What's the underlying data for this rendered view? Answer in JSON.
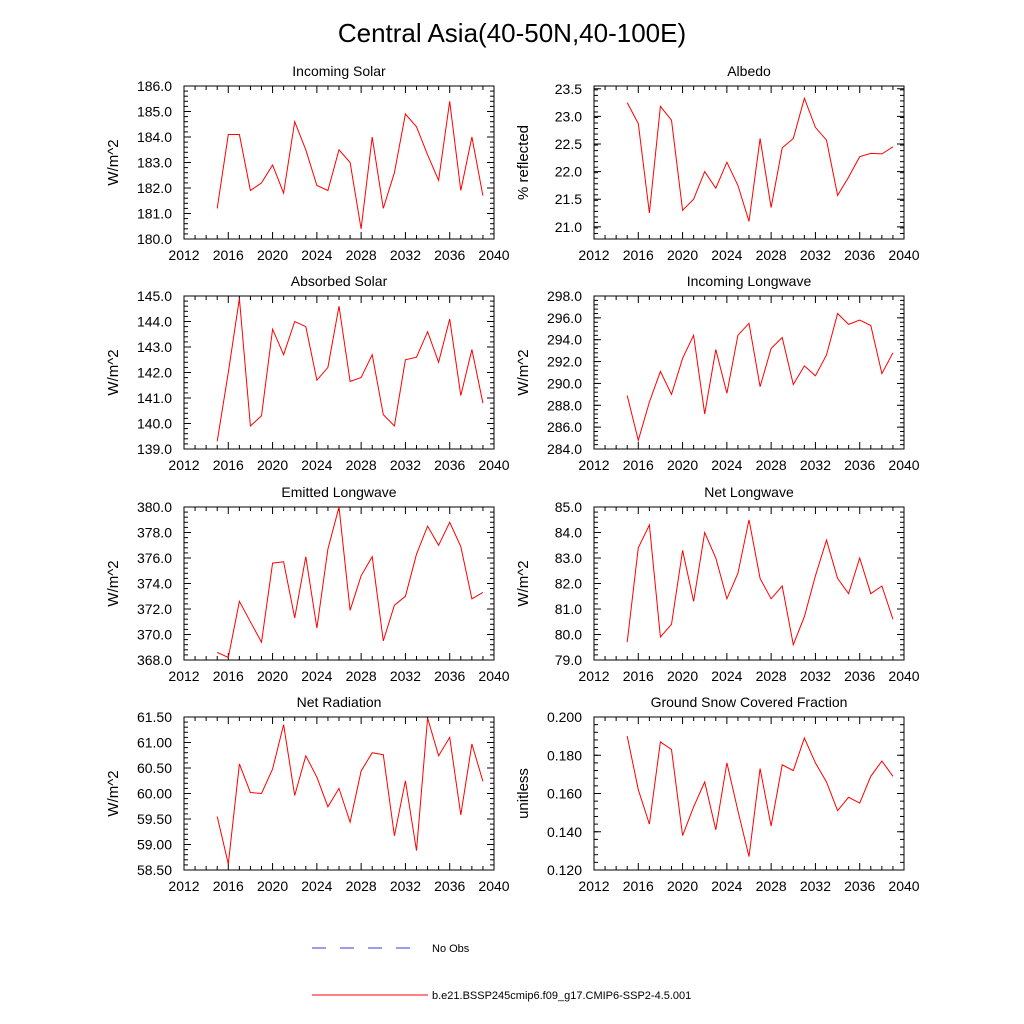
{
  "figure_title": "Central Asia(40-50N,40-100E)",
  "legend": [
    {
      "label": "No Obs",
      "color": "#3a3ad8",
      "dash": true
    },
    {
      "label": "b.e21.BSSP245cmip6.f09_g17.CMIP6-SSP2-4.5.001",
      "color": "#ff0000",
      "dash": false
    }
  ],
  "chart_data": [
    {
      "type": "line",
      "title": "Incoming Solar",
      "ylabel": "W/m^2",
      "xlim": [
        2012,
        2040
      ],
      "ylim": [
        180.0,
        186.0
      ],
      "xticks": [
        2012,
        2016,
        2020,
        2024,
        2028,
        2032,
        2036,
        2040
      ],
      "yticks": [
        "180.0",
        "181.0",
        "182.0",
        "183.0",
        "184.0",
        "185.0",
        "186.0"
      ],
      "series": [
        {
          "color": "#ff0000",
          "x": [
            2015,
            2016,
            2017,
            2018,
            2019,
            2020,
            2021,
            2022,
            2023,
            2024,
            2025,
            2026,
            2027,
            2028,
            2029,
            2030,
            2031,
            2032,
            2033,
            2034,
            2035,
            2036,
            2037,
            2038,
            2039
          ],
          "y": [
            181.2,
            184.1,
            184.1,
            181.9,
            182.2,
            182.9,
            181.8,
            184.6,
            183.5,
            182.1,
            181.9,
            183.5,
            183.0,
            180.4,
            184.0,
            181.2,
            182.6,
            184.9,
            184.4,
            183.3,
            182.3,
            185.4,
            181.9,
            184.0,
            181.7
          ]
        }
      ]
    },
    {
      "type": "line",
      "title": "Albedo",
      "ylabel": "% reflected",
      "xlim": [
        2012,
        2040
      ],
      "ylim": [
        20.78,
        23.55
      ],
      "xticks": [
        2012,
        2016,
        2020,
        2024,
        2028,
        2032,
        2036,
        2040
      ],
      "yticks": [
        "21.0",
        "21.5",
        "22.0",
        "22.5",
        "23.0",
        "23.5"
      ],
      "series": [
        {
          "color": "#ff0000",
          "x": [
            2015,
            2016,
            2017,
            2018,
            2019,
            2020,
            2021,
            2022,
            2023,
            2024,
            2025,
            2026,
            2027,
            2028,
            2029,
            2030,
            2031,
            2032,
            2033,
            2034,
            2035,
            2036,
            2037,
            2038,
            2039
          ],
          "y": [
            23.25,
            22.87,
            21.25,
            23.18,
            22.93,
            21.3,
            21.5,
            22.0,
            21.7,
            22.17,
            21.75,
            21.1,
            22.6,
            21.35,
            22.43,
            22.6,
            23.33,
            22.8,
            22.57,
            21.57,
            21.9,
            22.27,
            22.33,
            22.32,
            22.45
          ]
        }
      ]
    },
    {
      "type": "line",
      "title": "Absorbed Solar",
      "ylabel": "W/m^2",
      "xlim": [
        2012,
        2040
      ],
      "ylim": [
        139.0,
        145.0
      ],
      "xticks": [
        2012,
        2016,
        2020,
        2024,
        2028,
        2032,
        2036,
        2040
      ],
      "yticks": [
        "139.0",
        "140.0",
        "141.0",
        "142.0",
        "143.0",
        "144.0",
        "145.0"
      ],
      "series": [
        {
          "color": "#ff0000",
          "x": [
            2015,
            2016,
            2017,
            2018,
            2019,
            2020,
            2021,
            2022,
            2023,
            2024,
            2025,
            2026,
            2027,
            2028,
            2029,
            2030,
            2031,
            2032,
            2033,
            2034,
            2035,
            2036,
            2037,
            2038,
            2039
          ],
          "y": [
            139.3,
            142.0,
            144.9,
            139.9,
            140.3,
            143.7,
            142.7,
            144.0,
            143.8,
            141.7,
            142.2,
            144.6,
            141.65,
            141.8,
            142.7,
            140.35,
            139.9,
            142.5,
            142.6,
            143.6,
            142.4,
            144.1,
            141.1,
            142.9,
            140.8
          ]
        }
      ]
    },
    {
      "type": "line",
      "title": "Incoming Longwave",
      "ylabel": "W/m^2",
      "xlim": [
        2012,
        2040
      ],
      "ylim": [
        284.0,
        298.0
      ],
      "xticks": [
        2012,
        2016,
        2020,
        2024,
        2028,
        2032,
        2036,
        2040
      ],
      "yticks": [
        "284.0",
        "286.0",
        "288.0",
        "290.0",
        "292.0",
        "294.0",
        "296.0",
        "298.0"
      ],
      "series": [
        {
          "color": "#ff0000",
          "x": [
            2015,
            2016,
            2017,
            2018,
            2019,
            2020,
            2021,
            2022,
            2023,
            2024,
            2025,
            2026,
            2027,
            2028,
            2029,
            2030,
            2031,
            2032,
            2033,
            2034,
            2035,
            2036,
            2037,
            2038,
            2039
          ],
          "y": [
            288.9,
            284.8,
            288.3,
            291.1,
            289.0,
            292.3,
            294.4,
            287.2,
            293.1,
            289.1,
            294.4,
            295.5,
            289.7,
            293.2,
            294.2,
            289.9,
            291.6,
            290.7,
            292.6,
            296.4,
            295.4,
            295.8,
            295.3,
            290.9,
            292.8
          ]
        }
      ]
    },
    {
      "type": "line",
      "title": "Emitted Longwave",
      "ylabel": "W/m^2",
      "xlim": [
        2012,
        2040
      ],
      "ylim": [
        368.0,
        380.0
      ],
      "xticks": [
        2012,
        2016,
        2020,
        2024,
        2028,
        2032,
        2036,
        2040
      ],
      "yticks": [
        "368.0",
        "370.0",
        "372.0",
        "374.0",
        "376.0",
        "378.0",
        "380.0"
      ],
      "series": [
        {
          "color": "#ff0000",
          "x": [
            2015,
            2016,
            2017,
            2018,
            2019,
            2020,
            2021,
            2022,
            2023,
            2024,
            2025,
            2026,
            2027,
            2028,
            2029,
            2030,
            2031,
            2032,
            2033,
            2034,
            2035,
            2036,
            2037,
            2038,
            2039
          ],
          "y": [
            368.6,
            368.2,
            372.6,
            371.0,
            369.4,
            375.6,
            375.7,
            371.3,
            376.1,
            370.5,
            376.7,
            380.0,
            371.9,
            374.6,
            376.1,
            369.5,
            372.3,
            373.0,
            376.3,
            378.5,
            377.0,
            378.8,
            376.9,
            372.8,
            373.3
          ]
        }
      ]
    },
    {
      "type": "line",
      "title": "Net Longwave",
      "ylabel": "W/m^2",
      "xlim": [
        2012,
        2040
      ],
      "ylim": [
        79.0,
        85.0
      ],
      "xticks": [
        2012,
        2016,
        2020,
        2024,
        2028,
        2032,
        2036,
        2040
      ],
      "yticks": [
        "79.0",
        "80.0",
        "81.0",
        "82.0",
        "83.0",
        "84.0",
        "85.0"
      ],
      "series": [
        {
          "color": "#ff0000",
          "x": [
            2015,
            2016,
            2017,
            2018,
            2019,
            2020,
            2021,
            2022,
            2023,
            2024,
            2025,
            2026,
            2027,
            2028,
            2029,
            2030,
            2031,
            2032,
            2033,
            2034,
            2035,
            2036,
            2037,
            2038,
            2039
          ],
          "y": [
            79.7,
            83.4,
            84.3,
            79.9,
            80.4,
            83.3,
            81.3,
            84.0,
            83.0,
            81.4,
            82.4,
            84.5,
            82.2,
            81.4,
            81.9,
            79.6,
            80.7,
            82.3,
            83.7,
            82.2,
            81.6,
            83.0,
            81.6,
            81.9,
            80.6
          ]
        }
      ]
    },
    {
      "type": "line",
      "title": "Net Radiation",
      "ylabel": "W/m^2",
      "xlim": [
        2012,
        2040
      ],
      "ylim": [
        58.5,
        61.5
      ],
      "xticks": [
        2012,
        2016,
        2020,
        2024,
        2028,
        2032,
        2036,
        2040
      ],
      "yticks": [
        "58.50",
        "59.00",
        "59.50",
        "60.00",
        "60.50",
        "61.00",
        "61.50"
      ],
      "series": [
        {
          "color": "#ff0000",
          "x": [
            2015,
            2016,
            2017,
            2018,
            2019,
            2020,
            2021,
            2022,
            2023,
            2024,
            2025,
            2026,
            2027,
            2028,
            2029,
            2030,
            2031,
            2032,
            2033,
            2034,
            2035,
            2036,
            2037,
            2038,
            2039
          ],
          "y": [
            59.55,
            58.62,
            60.58,
            60.02,
            60.0,
            60.48,
            61.35,
            59.96,
            60.74,
            60.32,
            59.74,
            60.1,
            59.44,
            60.44,
            60.8,
            60.76,
            59.17,
            60.25,
            58.88,
            61.48,
            60.74,
            61.1,
            59.58,
            60.97,
            60.24
          ]
        }
      ]
    },
    {
      "type": "line",
      "title": "Ground Snow Covered Fraction",
      "ylabel": "unitless",
      "xlim": [
        2012,
        2040
      ],
      "ylim": [
        0.12,
        0.2
      ],
      "xticks": [
        2012,
        2016,
        2020,
        2024,
        2028,
        2032,
        2036,
        2040
      ],
      "yticks": [
        "0.120",
        "0.140",
        "0.160",
        "0.180",
        "0.200"
      ],
      "series": [
        {
          "color": "#ff0000",
          "x": [
            2015,
            2016,
            2017,
            2018,
            2019,
            2020,
            2021,
            2022,
            2023,
            2024,
            2025,
            2026,
            2027,
            2028,
            2029,
            2030,
            2031,
            2032,
            2033,
            2034,
            2035,
            2036,
            2037,
            2038,
            2039
          ],
          "y": [
            0.19,
            0.162,
            0.144,
            0.187,
            0.183,
            0.138,
            0.153,
            0.166,
            0.141,
            0.176,
            0.151,
            0.127,
            0.173,
            0.143,
            0.175,
            0.172,
            0.189,
            0.176,
            0.166,
            0.151,
            0.158,
            0.155,
            0.169,
            0.177,
            0.169
          ]
        }
      ]
    }
  ]
}
